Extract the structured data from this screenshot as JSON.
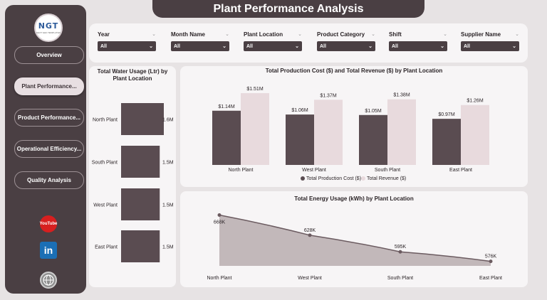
{
  "brand": {
    "logo_text": "NGT",
    "logo_sub": "NEXT GEN TEMPLATES"
  },
  "title": "Plant Performance Analysis",
  "nav": [
    {
      "label": "Overview"
    },
    {
      "label": "Plant Performance...",
      "active": true
    },
    {
      "label": "Product Performance..."
    },
    {
      "label": "Operational Efficiency..."
    },
    {
      "label": "Quality Analysis"
    }
  ],
  "social": {
    "youtube": "YouTube",
    "linkedin": "in"
  },
  "filters": [
    {
      "label": "Year",
      "value": "All"
    },
    {
      "label": "Month Name",
      "value": "All"
    },
    {
      "label": "Plant Location",
      "value": "All"
    },
    {
      "label": "Product Category",
      "value": "All"
    },
    {
      "label": "Shift",
      "value": "All"
    },
    {
      "label": "Supplier Name",
      "value": "All"
    }
  ],
  "colors": {
    "dark": "#4a3f43",
    "bar_dark": "#5a4c51",
    "bar_light": "#e8dadd",
    "area": "#b9adaf",
    "line": "#6b5b60"
  },
  "chart_data": [
    {
      "type": "bar",
      "title": "Total Water Usage (Ltr) by Plant Location",
      "orientation": "horizontal",
      "categories": [
        "North Plant",
        "South Plant",
        "West Plant",
        "East Plant"
      ],
      "values": [
        1.6,
        1.5,
        1.5,
        1.5
      ],
      "value_labels": [
        "1.6M",
        "1.5M",
        "1.5M",
        "1.5M"
      ],
      "unit": "M"
    },
    {
      "type": "bar",
      "title": "Total Production Cost ($) and Total Revenue ($) by Plant Location",
      "categories": [
        "North Plant",
        "West Plant",
        "South Plant",
        "East Plant"
      ],
      "series": [
        {
          "name": "Total Production Cost ($)",
          "values": [
            1.14,
            1.06,
            1.05,
            0.97
          ],
          "labels": [
            "$1.14M",
            "$1.06M",
            "$1.05M",
            "$0.97M"
          ]
        },
        {
          "name": "Total Revenue ($)",
          "values": [
            1.51,
            1.37,
            1.38,
            1.26
          ],
          "labels": [
            "$1.51M",
            "$1.37M",
            "$1.38M",
            "$1.26M"
          ]
        }
      ],
      "ylim": [
        0,
        1.6
      ],
      "legend": "bottom"
    },
    {
      "type": "area",
      "title": "Total Energy Usage (kWh) by Plant Location",
      "categories": [
        "North Plant",
        "West Plant",
        "South Plant",
        "East Plant"
      ],
      "values": [
        668,
        628,
        595,
        576
      ],
      "value_labels": [
        "668K",
        "628K",
        "595K",
        "576K"
      ],
      "ylim": [
        560,
        680
      ]
    }
  ]
}
